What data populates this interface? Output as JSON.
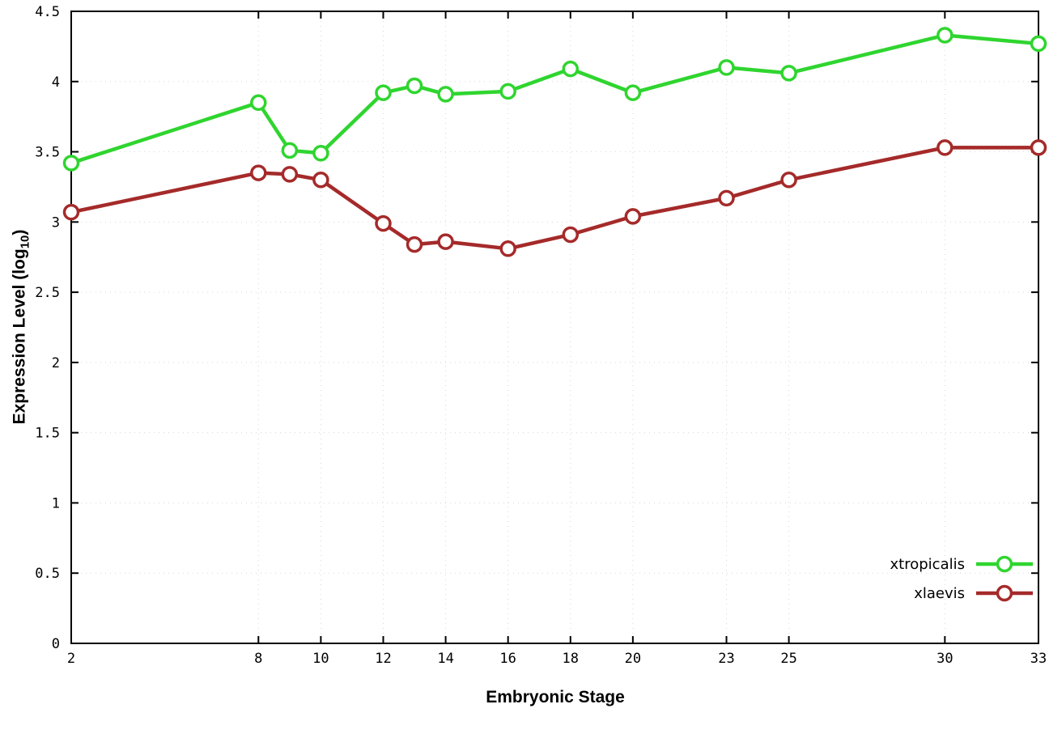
{
  "chart_data": {
    "type": "line",
    "title": "",
    "xlabel": "Embryonic Stage",
    "ylabel_prefix": "Expression Level (log",
    "ylabel_sub": "10",
    "ylabel_suffix": ")",
    "x": [
      2,
      8,
      9,
      10,
      12,
      13,
      14,
      16,
      18,
      20,
      23,
      25,
      30,
      33
    ],
    "series": [
      {
        "name": "xtropicalis",
        "color": "#2fd52f",
        "values": [
          3.42,
          3.85,
          3.51,
          3.49,
          3.92,
          3.97,
          3.91,
          3.93,
          4.09,
          3.92,
          4.1,
          4.06,
          4.33,
          4.27
        ]
      },
      {
        "name": "xlaevis",
        "color": "#a52a2a",
        "values": [
          3.07,
          3.35,
          3.34,
          3.3,
          2.99,
          2.84,
          2.86,
          2.81,
          2.91,
          3.04,
          3.17,
          3.3,
          3.53,
          3.53
        ]
      }
    ],
    "xlim": [
      2,
      33
    ],
    "ylim": [
      0,
      4.5
    ],
    "xticks": [
      2,
      8,
      10,
      12,
      14,
      16,
      18,
      20,
      23,
      25,
      30,
      33
    ],
    "xtick_labels": [
      "2",
      "8",
      "10",
      "12",
      "14",
      "16",
      "18",
      "20",
      "23",
      "25",
      "30",
      "33"
    ],
    "yticks": [
      0,
      0.5,
      1,
      1.5,
      2,
      2.5,
      3,
      3.5,
      4,
      4.5
    ],
    "ytick_labels": [
      "0",
      "0.5",
      "1",
      "1.5",
      "2",
      "2.5",
      "3",
      "3.5",
      "4",
      "4.5"
    ],
    "grid": true,
    "legend_position": "bottom-right-inside",
    "grid_color": "#d8d8d8",
    "axis_color": "#000000"
  }
}
